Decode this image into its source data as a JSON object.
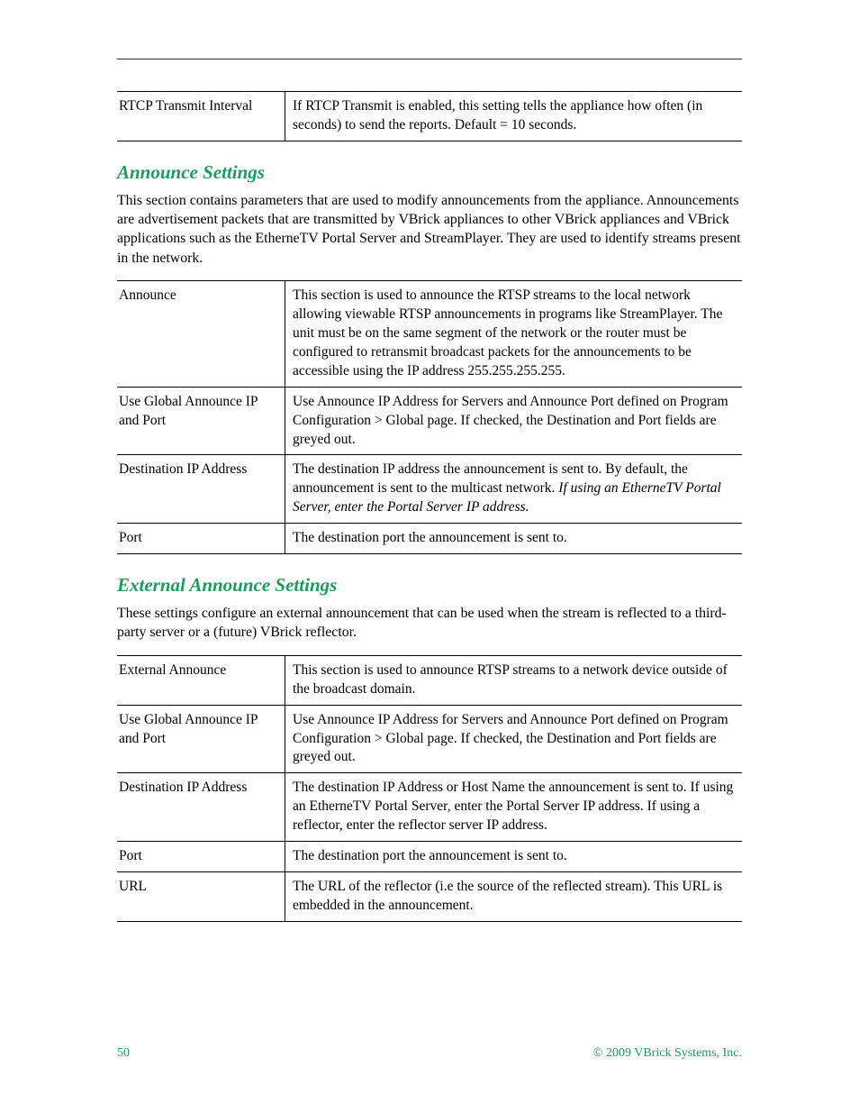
{
  "colors": {
    "heading": "#1a9e5c",
    "footer": "#1a9e5c",
    "text": "#000000",
    "rule": "#000000",
    "background": "#ffffff"
  },
  "typography": {
    "body_font": "Garamond serif",
    "body_size_pt": 12,
    "heading_size_pt": 16,
    "heading_weight": "bold",
    "heading_style": "italic"
  },
  "table1": {
    "rows": [
      {
        "label": "RTCP Transmit Interval",
        "desc": "If RTCP Transmit is enabled, this setting tells the appliance how often (in seconds) to send the reports. Default = 10 seconds."
      }
    ]
  },
  "section_announce": {
    "heading": "Announce Settings",
    "body": "This section contains parameters that are used to modify announcements from the appliance. Announcements are advertisement packets that are transmitted by VBrick appliances to other VBrick appliances and VBrick applications such as the EtherneTV Portal Server and StreamPlayer. They are used to identify streams present in the network.",
    "rows": [
      {
        "label": "Announce",
        "desc": "This section is used to announce the RTSP streams to the local network allowing viewable RTSP announcements in programs like StreamPlayer. The unit must be on the same segment of the network or the router must be configured to retransmit broadcast packets for the announcements to be accessible using the IP address 255.255.255.255."
      },
      {
        "label": "Use Global Announce IP and Port",
        "desc": "Use Announce IP Address for Servers and Announce Port defined on Program Configuration > Global page. If checked, the Destination and Port fields are greyed out."
      },
      {
        "label": "Destination IP Address",
        "desc_pre": "The destination IP address the announcement is sent to. By default, the announcement is sent to the multicast network. ",
        "desc_italic": "If using an EtherneTV Portal Server, enter the Portal Server IP address."
      },
      {
        "label": "Port",
        "desc": "The destination port the announcement is sent to."
      }
    ]
  },
  "section_external": {
    "heading": "External Announce Settings",
    "body": "These settings configure an external announcement that can be used when the stream is reflected to a third-party server or a (future) VBrick reflector.",
    "rows": [
      {
        "label": "External Announce",
        "desc": "This section is used to announce RTSP streams to a network device outside of the broadcast domain."
      },
      {
        "label": "Use Global Announce IP and Port",
        "desc": "Use Announce IP Address for Servers and Announce Port defined on Program Configuration > Global page. If checked, the Destination and Port fields are greyed out."
      },
      {
        "label": "Destination IP Address",
        "desc": "The destination IP Address or Host Name the announcement is sent to. If using an EtherneTV Portal Server, enter the Portal Server IP address. If using a reflector, enter the reflector server IP address."
      },
      {
        "label": "Port",
        "desc": "The destination port the announcement is sent to."
      },
      {
        "label": "URL",
        "desc": "The URL of the reflector (i.e the source of the reflected stream). This URL is embedded in the announcement."
      }
    ]
  },
  "footer": {
    "page": "50",
    "copyright": "© 2009 VBrick Systems, Inc."
  }
}
